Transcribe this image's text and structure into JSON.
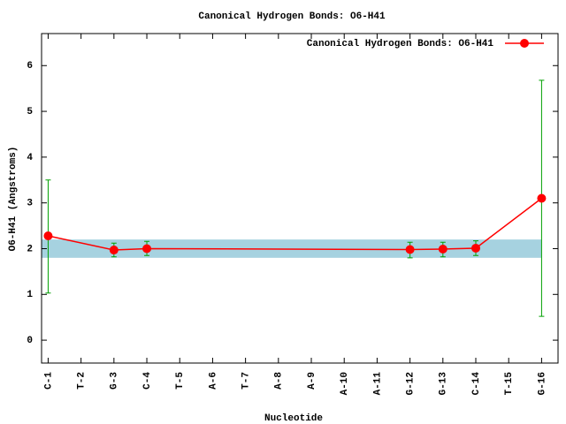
{
  "chart_data": {
    "type": "line",
    "title": "Canonical Hydrogen Bonds: O6-H41",
    "xlabel": "Nucleotide",
    "ylabel": "O6-H41 (Angstroms)",
    "xlim": [
      0.8,
      16.5
    ],
    "xticks": [
      {
        "value": 1,
        "label": "C-1"
      },
      {
        "value": 2,
        "label": "T-2"
      },
      {
        "value": 3,
        "label": "G-3"
      },
      {
        "value": 4,
        "label": "C-4"
      },
      {
        "value": 5,
        "label": "T-5"
      },
      {
        "value": 6,
        "label": "A-6"
      },
      {
        "value": 7,
        "label": "T-7"
      },
      {
        "value": 8,
        "label": "A-8"
      },
      {
        "value": 9,
        "label": "A-9"
      },
      {
        "value": 10,
        "label": "A-10"
      },
      {
        "value": 11,
        "label": "A-11"
      },
      {
        "value": 12,
        "label": "G-12"
      },
      {
        "value": 13,
        "label": "G-13"
      },
      {
        "value": 14,
        "label": "C-14"
      },
      {
        "value": 15,
        "label": "T-15"
      },
      {
        "value": 16,
        "label": "G-16"
      }
    ],
    "ylim": [
      -0.5,
      6.7
    ],
    "yticks": [
      0,
      1,
      2,
      3,
      4,
      5,
      6
    ],
    "reference_band": [
      1.8,
      2.2
    ],
    "band_color": "#a6d2e0",
    "legend": "top-right",
    "series": [
      {
        "name": "Canonical Hydrogen Bonds: O6-H41",
        "color": "#ff0000",
        "error_color": "#00a000",
        "x": [
          1,
          3,
          4,
          12,
          13,
          14,
          16
        ],
        "values": [
          2.28,
          1.97,
          2.0,
          1.98,
          1.99,
          2.01,
          3.1
        ],
        "error_low": [
          1.03,
          1.82,
          1.85,
          1.8,
          1.82,
          1.85,
          0.52
        ],
        "error_high": [
          3.5,
          2.12,
          2.16,
          2.14,
          2.14,
          2.17,
          5.68
        ]
      }
    ]
  }
}
